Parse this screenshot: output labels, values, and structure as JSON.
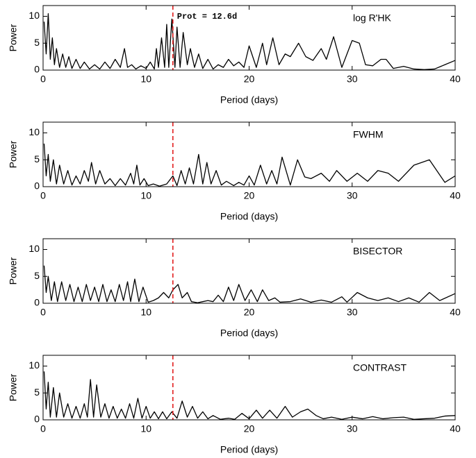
{
  "chart_data": [
    {
      "type": "line",
      "label": "log R'HK",
      "annotation": "Prot = 12.6d",
      "vline": 12.6,
      "vline_color": "#e01010",
      "color": "#000000",
      "xlabel": "Period (days)",
      "ylabel": "Power",
      "xlim": [
        0,
        40
      ],
      "ylim": [
        0,
        12
      ],
      "xticks": [
        0,
        10,
        20,
        30,
        40
      ],
      "yticks": [
        0,
        5,
        10
      ],
      "x": [
        0.1,
        0.3,
        0.5,
        0.7,
        0.9,
        1.1,
        1.3,
        1.6,
        1.9,
        2.2,
        2.5,
        2.8,
        3.2,
        3.6,
        4,
        4.5,
        5,
        5.5,
        6,
        6.5,
        7,
        7.5,
        7.9,
        8.2,
        8.6,
        9,
        9.5,
        10,
        10.4,
        10.8,
        11,
        11.2,
        11.5,
        11.8,
        12,
        12.2,
        12.5,
        12.8,
        13,
        13.3,
        13.6,
        14,
        14.3,
        14.7,
        15.1,
        15.5,
        16,
        16.5,
        17,
        17.5,
        18,
        18.5,
        19,
        19.5,
        20,
        20.7,
        21.3,
        21.7,
        22.3,
        22.9,
        23.5,
        24,
        24.8,
        25.5,
        26.2,
        27,
        27.5,
        28.2,
        29,
        30,
        30.7,
        31.3,
        32,
        32.8,
        33.3,
        34,
        35,
        36,
        37,
        38,
        39,
        40
      ],
      "values": [
        9,
        3,
        10.5,
        2,
        6,
        1,
        4,
        0.5,
        3,
        0.5,
        2.5,
        0.3,
        2,
        0.3,
        1.5,
        0.2,
        1,
        0.2,
        1.5,
        0.3,
        2,
        0.5,
        4,
        0.5,
        1,
        0.2,
        0.8,
        0.3,
        1.5,
        0.2,
        4,
        0.5,
        6,
        0.5,
        8.5,
        0.5,
        9.5,
        0.5,
        8,
        0.5,
        7,
        1,
        4,
        0.5,
        3,
        0.3,
        2,
        0.2,
        1,
        0.5,
        2,
        0.8,
        1.5,
        0.5,
        4.5,
        0.5,
        5,
        1,
        6,
        1,
        3,
        2.5,
        5,
        2.5,
        1.8,
        4,
        2,
        6.2,
        0.5,
        5.5,
        5,
        1,
        0.8,
        2,
        2,
        0.3,
        0.7,
        0.2,
        0.1,
        0.2,
        1,
        1.8
      ]
    },
    {
      "type": "line",
      "label": "FWHM",
      "vline": 12.6,
      "vline_color": "#e01010",
      "color": "#000000",
      "xlabel": "Period (days)",
      "ylabel": "Power",
      "xlim": [
        0,
        40
      ],
      "ylim": [
        0,
        12
      ],
      "xticks": [
        0,
        10,
        20,
        30,
        40
      ],
      "yticks": [
        0,
        5,
        10
      ],
      "x": [
        0.1,
        0.3,
        0.5,
        0.7,
        1,
        1.3,
        1.6,
        2,
        2.4,
        2.8,
        3.2,
        3.6,
        4,
        4.4,
        4.7,
        5.1,
        5.5,
        6,
        6.5,
        7,
        7.5,
        8,
        8.5,
        8.8,
        9.1,
        9.4,
        9.8,
        10.2,
        10.7,
        11.3,
        12,
        12.6,
        13,
        13.4,
        13.8,
        14.2,
        14.6,
        15.1,
        15.5,
        15.9,
        16.3,
        16.8,
        17.3,
        17.8,
        18.5,
        19,
        19.5,
        20,
        20.5,
        21.1,
        21.7,
        22.2,
        22.7,
        23.2,
        24,
        24.7,
        25.4,
        26,
        27,
        27.8,
        28.5,
        29.5,
        30.5,
        31.5,
        32.5,
        33.5,
        34.5,
        36,
        37.5,
        39,
        40
      ],
      "values": [
        8,
        2,
        6,
        1,
        5,
        0.5,
        4,
        0.5,
        3,
        0.3,
        2,
        0.5,
        3,
        1,
        4.5,
        0.5,
        3,
        0.5,
        1.5,
        0.2,
        1.5,
        0.3,
        2.5,
        0.5,
        4,
        0.3,
        1.5,
        0.2,
        0.5,
        0.1,
        0.5,
        2,
        0.2,
        3,
        0.5,
        3.5,
        0.5,
        6,
        0.5,
        4.5,
        0.5,
        3,
        0.3,
        1,
        0.2,
        0.8,
        0.3,
        2,
        0.3,
        4,
        0.5,
        3,
        0.5,
        5.5,
        0.3,
        5,
        1.8,
        1.5,
        2.5,
        1,
        3,
        1,
        2.5,
        1,
        3,
        2.5,
        1,
        4,
        5,
        0.8,
        2
      ]
    },
    {
      "type": "line",
      "label": "BISECTOR",
      "vline": 12.6,
      "vline_color": "#e01010",
      "color": "#000000",
      "xlabel": "Period (days)",
      "ylabel": "Power",
      "xlim": [
        0,
        40
      ],
      "ylim": [
        0,
        12
      ],
      "xticks": [
        0,
        10,
        20,
        30,
        40
      ],
      "yticks": [
        0,
        5,
        10
      ],
      "x": [
        0.1,
        0.3,
        0.5,
        0.8,
        1.1,
        1.4,
        1.8,
        2.2,
        2.6,
        3,
        3.4,
        3.8,
        4.2,
        4.6,
        5,
        5.4,
        5.8,
        6.2,
        6.6,
        7,
        7.4,
        7.8,
        8.2,
        8.5,
        8.9,
        9.3,
        9.7,
        10.2,
        10.7,
        11.2,
        11.7,
        12.2,
        12.6,
        13.1,
        13.5,
        14,
        14.4,
        15,
        15.5,
        16,
        16.5,
        17,
        17.5,
        18,
        18.5,
        19,
        19.6,
        20.2,
        20.8,
        21.3,
        21.9,
        22.5,
        23,
        24,
        25,
        26,
        27,
        28,
        29,
        29.5,
        30.5,
        31.5,
        32.5,
        33.5,
        34.5,
        35.5,
        36.5,
        37.5,
        38.5,
        40
      ],
      "values": [
        7,
        2,
        5,
        0.5,
        4,
        0.3,
        4,
        0.5,
        3.5,
        0.3,
        3,
        0.3,
        3.5,
        0.5,
        3,
        0.3,
        3.5,
        0.3,
        2.5,
        0.3,
        3.5,
        0.5,
        4,
        0.3,
        4.5,
        0.3,
        3,
        0.2,
        0.5,
        1,
        2,
        1,
        2.5,
        3.5,
        1,
        2,
        0.3,
        0.1,
        0.3,
        0.5,
        0.3,
        1.5,
        0.3,
        3,
        0.5,
        3.5,
        0.5,
        2.5,
        0.3,
        2.5,
        0.5,
        1,
        0.2,
        0.3,
        0.8,
        0.2,
        0.6,
        0.2,
        1.2,
        0.2,
        2,
        1,
        0.5,
        1,
        0.3,
        1,
        0.2,
        2,
        0.5,
        1.8
      ]
    },
    {
      "type": "line",
      "label": "CONTRAST",
      "vline": 12.6,
      "vline_color": "#e01010",
      "color": "#000000",
      "xlabel": "Period (days)",
      "ylabel": "Power",
      "xlim": [
        0,
        40
      ],
      "ylim": [
        0,
        12
      ],
      "xticks": [
        0,
        10,
        20,
        30,
        40
      ],
      "yticks": [
        0,
        5,
        10
      ],
      "x": [
        0.1,
        0.3,
        0.5,
        0.7,
        1,
        1.3,
        1.6,
        2,
        2.4,
        2.8,
        3.2,
        3.6,
        4,
        4.3,
        4.6,
        4.9,
        5.2,
        5.6,
        6,
        6.4,
        6.8,
        7.2,
        7.6,
        8,
        8.4,
        8.8,
        9.2,
        9.6,
        10,
        10.4,
        10.8,
        11.2,
        11.6,
        12,
        12.5,
        13,
        13.5,
        14,
        14.5,
        15,
        15.5,
        16,
        16.5,
        17.2,
        18,
        18.6,
        19.3,
        20,
        20.7,
        21.3,
        22,
        22.7,
        23.5,
        24.2,
        25,
        25.7,
        26.5,
        27.2,
        28,
        29,
        30,
        31,
        32,
        33,
        34,
        35,
        36,
        37,
        38,
        39,
        40
      ],
      "values": [
        9,
        2,
        7,
        0.5,
        6,
        0.5,
        5,
        0.5,
        3,
        0.3,
        2.5,
        0.3,
        3,
        0.5,
        7.5,
        0.5,
        6.5,
        0.5,
        3,
        0.3,
        2.5,
        0.3,
        2,
        0.3,
        3,
        0.3,
        4,
        0.3,
        2.5,
        0.3,
        1.5,
        0.2,
        1.5,
        0.2,
        1.5,
        0.3,
        3.5,
        0.5,
        2.5,
        0.3,
        1.5,
        0.2,
        0.8,
        0.1,
        0.3,
        0.1,
        1.2,
        0.2,
        1.8,
        0.3,
        1.8,
        0.3,
        2.5,
        0.5,
        1.5,
        2,
        0.8,
        0.2,
        0.5,
        0.1,
        0.5,
        0.2,
        0.6,
        0.2,
        0.4,
        0.5,
        0.1,
        0.2,
        0.3,
        0.7,
        0.8
      ]
    }
  ]
}
